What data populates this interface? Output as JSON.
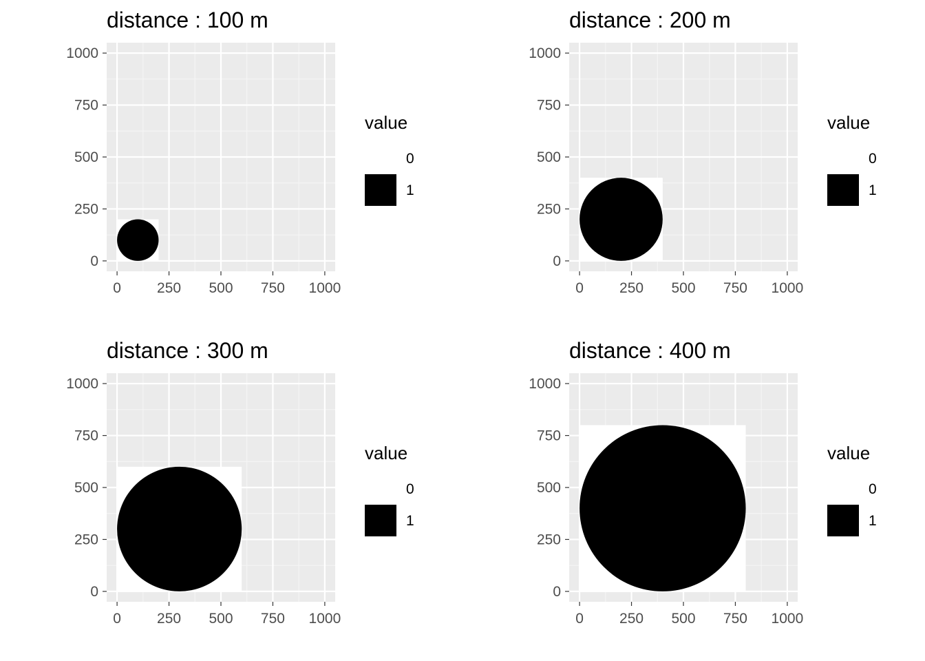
{
  "chart_data": [
    {
      "type": "heatmap",
      "title": "distance : 100 m",
      "xlim": [
        -50,
        1050
      ],
      "ylim": [
        -50,
        1050
      ],
      "x_ticks": [
        0,
        250,
        500,
        750,
        1000
      ],
      "y_ticks": [
        0,
        250,
        500,
        750,
        1000
      ],
      "x_tick_labels": [
        "0",
        "250",
        "500",
        "750",
        "1000"
      ],
      "y_tick_labels": [
        "0",
        "250",
        "500",
        "750",
        "1000"
      ],
      "raster_extent": {
        "x": [
          0,
          200
        ],
        "y": [
          0,
          200
        ]
      },
      "circle": {
        "center": [
          100,
          100
        ],
        "radius": 100,
        "value": 1
      },
      "background_value": 0,
      "grid": true,
      "legend": {
        "title": "value",
        "position": "right",
        "entries": [
          {
            "label": "0",
            "color": "#ffffff"
          },
          {
            "label": "1",
            "color": "#000000"
          }
        ]
      }
    },
    {
      "type": "heatmap",
      "title": "distance : 200 m",
      "xlim": [
        -50,
        1050
      ],
      "ylim": [
        -50,
        1050
      ],
      "x_ticks": [
        0,
        250,
        500,
        750,
        1000
      ],
      "y_ticks": [
        0,
        250,
        500,
        750,
        1000
      ],
      "x_tick_labels": [
        "0",
        "250",
        "500",
        "750",
        "1000"
      ],
      "y_tick_labels": [
        "0",
        "250",
        "500",
        "750",
        "1000"
      ],
      "raster_extent": {
        "x": [
          0,
          400
        ],
        "y": [
          0,
          400
        ]
      },
      "circle": {
        "center": [
          200,
          200
        ],
        "radius": 200,
        "value": 1
      },
      "background_value": 0,
      "grid": true,
      "legend": {
        "title": "value",
        "position": "right",
        "entries": [
          {
            "label": "0",
            "color": "#ffffff"
          },
          {
            "label": "1",
            "color": "#000000"
          }
        ]
      }
    },
    {
      "type": "heatmap",
      "title": "distance : 300 m",
      "xlim": [
        -50,
        1050
      ],
      "ylim": [
        -50,
        1050
      ],
      "x_ticks": [
        0,
        250,
        500,
        750,
        1000
      ],
      "y_ticks": [
        0,
        250,
        500,
        750,
        1000
      ],
      "x_tick_labels": [
        "0",
        "250",
        "500",
        "750",
        "1000"
      ],
      "y_tick_labels": [
        "0",
        "250",
        "500",
        "750",
        "1000"
      ],
      "raster_extent": {
        "x": [
          0,
          600
        ],
        "y": [
          0,
          600
        ]
      },
      "circle": {
        "center": [
          300,
          300
        ],
        "radius": 300,
        "value": 1
      },
      "background_value": 0,
      "grid": true,
      "legend": {
        "title": "value",
        "position": "right",
        "entries": [
          {
            "label": "0",
            "color": "#ffffff"
          },
          {
            "label": "1",
            "color": "#000000"
          }
        ]
      }
    },
    {
      "type": "heatmap",
      "title": "distance : 400 m",
      "xlim": [
        -50,
        1050
      ],
      "ylim": [
        -50,
        1050
      ],
      "x_ticks": [
        0,
        250,
        500,
        750,
        1000
      ],
      "y_ticks": [
        0,
        250,
        500,
        750,
        1000
      ],
      "x_tick_labels": [
        "0",
        "250",
        "500",
        "750",
        "1000"
      ],
      "y_tick_labels": [
        "0",
        "250",
        "500",
        "750",
        "1000"
      ],
      "raster_extent": {
        "x": [
          0,
          800
        ],
        "y": [
          0,
          800
        ]
      },
      "circle": {
        "center": [
          400,
          400
        ],
        "radius": 400,
        "value": 1
      },
      "background_value": 0,
      "grid": true,
      "legend": {
        "title": "value",
        "position": "right",
        "entries": [
          {
            "label": "0",
            "color": "#ffffff"
          },
          {
            "label": "1",
            "color": "#000000"
          }
        ]
      }
    }
  ],
  "colors": {
    "panel_background": "#ebebeb",
    "grid_major": "#ffffff",
    "grid_minor": "#f5f5f5",
    "axis_tick": "#333333",
    "tick_text": "#4d4d4d",
    "fill_zero": "#ffffff",
    "fill_one": "#000000"
  }
}
